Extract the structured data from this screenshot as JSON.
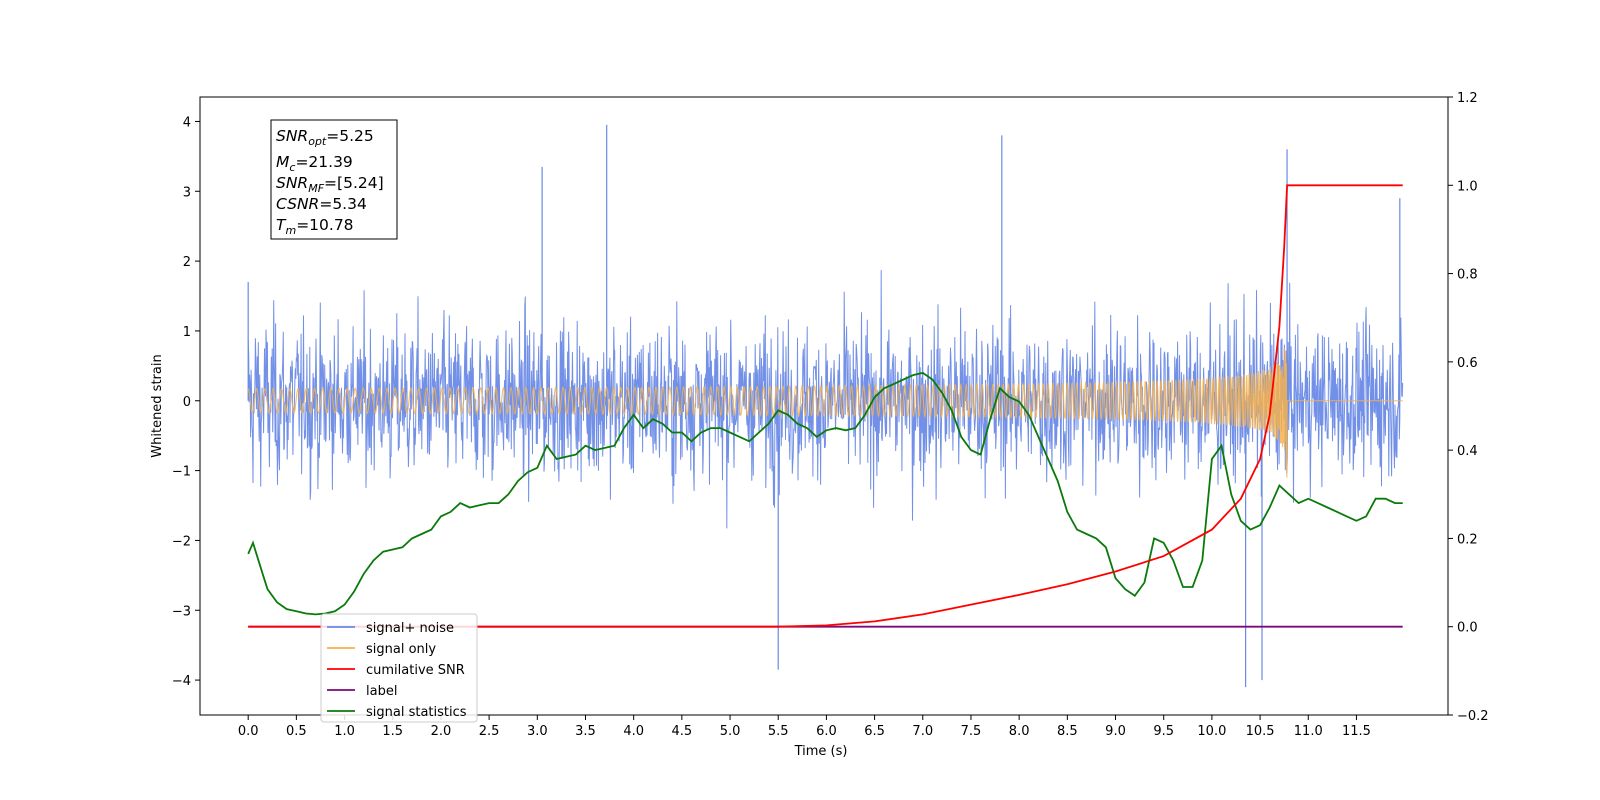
{
  "chart_data": {
    "type": "line",
    "xlabel": "Time (s)",
    "ylabel_left": "Whitened strain",
    "ylabel_right": "",
    "xlim": [
      -0.5,
      12.45
    ],
    "ylim_left": [
      -4.5,
      4.35
    ],
    "ylim_right": [
      -0.2,
      1.2
    ],
    "x_ticks": [
      0.0,
      0.5,
      1.0,
      1.5,
      2.0,
      2.5,
      3.0,
      3.5,
      4.0,
      4.5,
      5.0,
      5.5,
      6.0,
      6.5,
      7.0,
      7.5,
      8.0,
      8.5,
      9.0,
      9.5,
      10.0,
      10.5,
      11.0,
      11.5
    ],
    "x_tick_labels": [
      "0.0",
      "0.5",
      "1.0",
      "1.5",
      "2.0",
      "2.5",
      "3.0",
      "3.5",
      "4.0",
      "4.5",
      "5.0",
      "5.5",
      "6.0",
      "6.5",
      "7.0",
      "7.5",
      "8.0",
      "8.5",
      "9.0",
      "9.5",
      "10.0",
      "10.5",
      "11.0",
      "11.5"
    ],
    "y_left_ticks": [
      4,
      3,
      2,
      1,
      0,
      -1,
      -2,
      -3,
      -4
    ],
    "y_left_tick_labels": [
      "4",
      "3",
      "2",
      "1",
      "0",
      "−1",
      "−2",
      "−3",
      "−4"
    ],
    "y_right_ticks": [
      1.2,
      1.0,
      0.8,
      0.6,
      0.4,
      0.2,
      0.0,
      -0.2
    ],
    "y_right_tick_labels": [
      "1.2",
      "1.0",
      "0.8",
      "0.6",
      "0.4",
      "0.2",
      "0.0",
      "−0.2"
    ],
    "grid": false,
    "legend_position": "lower-left",
    "annotation": {
      "snr_opt": {
        "main": "SNR",
        "sub": "opt",
        "value": "=5.25"
      },
      "mc": {
        "main": "M",
        "sub": "c",
        "value": "=21.39"
      },
      "snr_mf": {
        "main": "SNR",
        "sub": "MF",
        "value": "=[5.24]"
      },
      "csnr": {
        "main": "CSNR",
        "value": "=5.34"
      },
      "tm": {
        "main": "T",
        "sub": "m",
        "value": "=10.78"
      }
    },
    "series": [
      {
        "name": "signal+ noise",
        "color": "#6a8ae6",
        "axis": "left",
        "description": "dense noisy strain from 0 to 11.98 s, envelope roughly between -4 and 4",
        "x_range": [
          0.0,
          11.98
        ],
        "peak_points": [
          [
            0.0,
            1.7
          ],
          [
            3.05,
            3.35
          ],
          [
            3.72,
            3.95
          ],
          [
            5.5,
            -3.85
          ],
          [
            7.82,
            3.8
          ],
          [
            10.35,
            -4.1
          ],
          [
            10.52,
            -4.0
          ],
          [
            10.78,
            3.6
          ],
          [
            11.95,
            2.9
          ]
        ]
      },
      {
        "name": "signal only",
        "color": "#f4b24e",
        "axis": "left",
        "description": "chirp waveform, near zero until ~8 s, amplitude grows to merger at 10.78 s then zero",
        "merger_time": 10.78,
        "max_amplitude": 1.25
      },
      {
        "name": "cumilative SNR",
        "color": "#ff0000",
        "axis": "right",
        "x": [
          0.0,
          5.0,
          5.5,
          6.0,
          6.5,
          7.0,
          7.5,
          8.0,
          8.5,
          9.0,
          9.5,
          10.0,
          10.3,
          10.5,
          10.6,
          10.7,
          10.75,
          10.78,
          11.98
        ],
        "y": [
          0.0,
          0.0,
          0.0,
          0.003,
          0.012,
          0.028,
          0.05,
          0.072,
          0.096,
          0.125,
          0.16,
          0.22,
          0.29,
          0.38,
          0.48,
          0.68,
          0.86,
          1.0,
          1.0
        ]
      },
      {
        "name": "label",
        "color": "#7a0a7a",
        "axis": "right",
        "x": [
          0.0,
          11.98
        ],
        "y": [
          0.0,
          0.0
        ]
      },
      {
        "name": "signal statistics",
        "color": "#0a7a0a",
        "axis": "right",
        "x": [
          0.0,
          0.05,
          0.1,
          0.15,
          0.2,
          0.3,
          0.4,
          0.5,
          0.6,
          0.7,
          0.8,
          0.9,
          1.0,
          1.1,
          1.2,
          1.3,
          1.4,
          1.5,
          1.6,
          1.7,
          1.8,
          1.9,
          2.0,
          2.1,
          2.2,
          2.3,
          2.4,
          2.5,
          2.6,
          2.7,
          2.8,
          2.9,
          3.0,
          3.1,
          3.2,
          3.3,
          3.4,
          3.5,
          3.6,
          3.7,
          3.8,
          3.9,
          4.0,
          4.1,
          4.2,
          4.3,
          4.4,
          4.5,
          4.6,
          4.7,
          4.8,
          4.9,
          5.0,
          5.1,
          5.2,
          5.3,
          5.4,
          5.5,
          5.6,
          5.7,
          5.8,
          5.9,
          6.0,
          6.1,
          6.2,
          6.3,
          6.4,
          6.5,
          6.6,
          6.7,
          6.8,
          6.9,
          7.0,
          7.1,
          7.2,
          7.3,
          7.4,
          7.5,
          7.6,
          7.7,
          7.8,
          7.9,
          8.0,
          8.1,
          8.2,
          8.3,
          8.4,
          8.5,
          8.6,
          8.7,
          8.8,
          8.9,
          9.0,
          9.1,
          9.2,
          9.3,
          9.4,
          9.5,
          9.6,
          9.7,
          9.8,
          9.9,
          10.0,
          10.1,
          10.2,
          10.3,
          10.4,
          10.5,
          10.6,
          10.7,
          10.8,
          10.9,
          11.0,
          11.1,
          11.2,
          11.3,
          11.4,
          11.5,
          11.6,
          11.7,
          11.8,
          11.9,
          11.98
        ],
        "y": [
          0.165,
          0.19,
          0.155,
          0.12,
          0.085,
          0.055,
          0.04,
          0.035,
          0.03,
          0.028,
          0.03,
          0.035,
          0.05,
          0.08,
          0.12,
          0.15,
          0.17,
          0.175,
          0.18,
          0.2,
          0.21,
          0.22,
          0.25,
          0.26,
          0.28,
          0.27,
          0.275,
          0.28,
          0.28,
          0.3,
          0.33,
          0.35,
          0.36,
          0.41,
          0.38,
          0.385,
          0.39,
          0.41,
          0.4,
          0.405,
          0.41,
          0.45,
          0.48,
          0.45,
          0.47,
          0.46,
          0.44,
          0.44,
          0.42,
          0.44,
          0.45,
          0.45,
          0.44,
          0.43,
          0.42,
          0.44,
          0.46,
          0.49,
          0.48,
          0.46,
          0.45,
          0.43,
          0.445,
          0.45,
          0.445,
          0.45,
          0.48,
          0.52,
          0.54,
          0.55,
          0.56,
          0.57,
          0.575,
          0.56,
          0.53,
          0.49,
          0.43,
          0.4,
          0.39,
          0.47,
          0.54,
          0.52,
          0.51,
          0.48,
          0.43,
          0.38,
          0.33,
          0.26,
          0.22,
          0.21,
          0.2,
          0.18,
          0.11,
          0.085,
          0.07,
          0.1,
          0.2,
          0.19,
          0.15,
          0.09,
          0.09,
          0.15,
          0.38,
          0.41,
          0.3,
          0.24,
          0.22,
          0.23,
          0.27,
          0.32,
          0.3,
          0.28,
          0.29,
          0.28,
          0.27,
          0.26,
          0.25,
          0.24,
          0.25,
          0.29,
          0.29,
          0.28,
          0.28
        ]
      }
    ]
  }
}
